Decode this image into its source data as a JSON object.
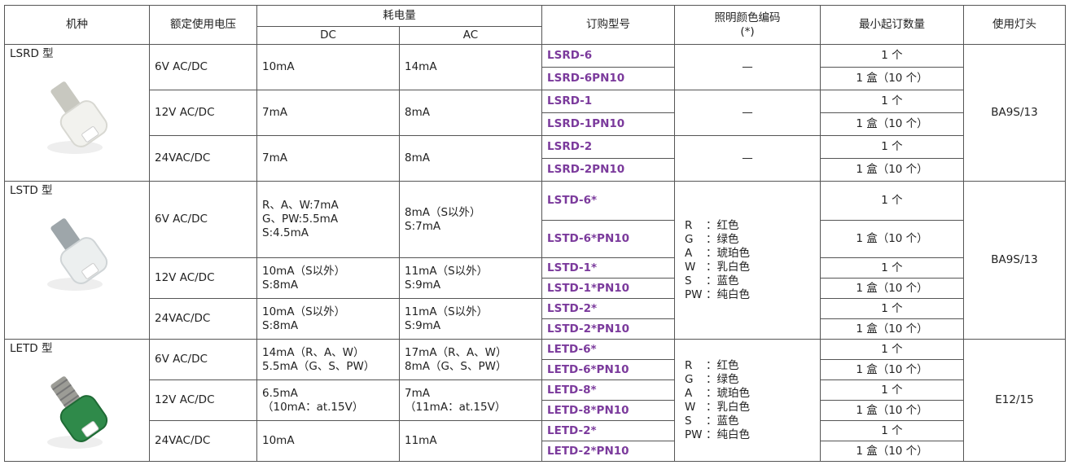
{
  "header": {
    "model": "机种",
    "voltage": "额定使用电压",
    "consumption": "耗电量",
    "dc": "DC",
    "ac": "AC",
    "order": "订购型号",
    "color_code": "照明颜色编码",
    "color_code_note": "(*)",
    "min_qty": "最小起订数量",
    "base": "使用灯头"
  },
  "groups": [
    {
      "model": "LSRD 型",
      "base": "BA9S/13",
      "rows": [
        {
          "voltage": "6V AC/DC",
          "dc": [
            "10mA"
          ],
          "ac": [
            "14mA"
          ],
          "color": "—",
          "orders": [
            {
              "code": "LSRD-6",
              "qty": "1 个"
            },
            {
              "code": "LSRD-6PN10",
              "qty": "1 盒（10 个）"
            }
          ]
        },
        {
          "voltage": "12V AC/DC",
          "dc": [
            "7mA"
          ],
          "ac": [
            "8mA"
          ],
          "color": "—",
          "orders": [
            {
              "code": "LSRD-1",
              "qty": "1 个"
            },
            {
              "code": "LSRD-1PN10",
              "qty": "1 盒（10 个）"
            }
          ]
        },
        {
          "voltage": "24VAC/DC",
          "dc": [
            "7mA"
          ],
          "ac": [
            "8mA"
          ],
          "color": "—",
          "orders": [
            {
              "code": "LSRD-2",
              "qty": "1 个"
            },
            {
              "code": "LSRD-2PN10",
              "qty": "1 盒（10 个）"
            }
          ]
        }
      ]
    },
    {
      "model": "LSTD 型",
      "base": "BA9S/13",
      "color_codes": [
        {
          "code": "R",
          "label": "：红色"
        },
        {
          "code": "G",
          "label": "：绿色"
        },
        {
          "code": "A",
          "label": "：琥珀色"
        },
        {
          "code": "W",
          "label": "：乳白色"
        },
        {
          "code": "S",
          "label": "：蓝色"
        },
        {
          "code": "PW",
          "label": "：纯白色"
        }
      ],
      "rows": [
        {
          "voltage": "6V AC/DC",
          "dc": [
            "R、A、W:7mA",
            "G、PW:5.5mA",
            "S:4.5mA"
          ],
          "ac": [
            "8mA（S以外）",
            "S:7mA"
          ],
          "orders": [
            {
              "code": "LSTD-6*",
              "qty": "1 个"
            },
            {
              "code": "LSTD-6*PN10",
              "qty": "1 盒（10 个）"
            }
          ]
        },
        {
          "voltage": "12V AC/DC",
          "dc": [
            "10mA（S以外）",
            "S:8mA"
          ],
          "ac": [
            "11mA（S以外）",
            "S:9mA"
          ],
          "orders": [
            {
              "code": "LSTD-1*",
              "qty": "1 个"
            },
            {
              "code": "LSTD-1*PN10",
              "qty": "1 盒（10 个）"
            }
          ]
        },
        {
          "voltage": "24VAC/DC",
          "dc": [
            "10mA（S以外）",
            "S:8mA"
          ],
          "ac": [
            "11mA（S以外）",
            "S:9mA"
          ],
          "orders": [
            {
              "code": "LSTD-2*",
              "qty": "1 个"
            },
            {
              "code": "LSTD-2*PN10",
              "qty": "1 盒（10 个）"
            }
          ]
        }
      ]
    },
    {
      "model": "LETD 型",
      "base": "E12/15",
      "color_codes": [
        {
          "code": "R",
          "label": "：红色"
        },
        {
          "code": "G",
          "label": "：绿色"
        },
        {
          "code": "A",
          "label": "：琥珀色"
        },
        {
          "code": "W",
          "label": "：乳白色"
        },
        {
          "code": "S",
          "label": "：蓝色"
        },
        {
          "code": "PW",
          "label": "：纯白色"
        }
      ],
      "rows": [
        {
          "voltage": "6V AC/DC",
          "dc": [
            "14mA（R、A、W）",
            "5.5mA（G、S、PW）"
          ],
          "ac": [
            "17mA（R、A、W）",
            "8mA（G、S、PW）"
          ],
          "orders": [
            {
              "code": "LETD-6*",
              "qty": "1 个"
            },
            {
              "code": "LETD-6*PN10",
              "qty": "1 盒（10 个）"
            }
          ]
        },
        {
          "voltage": "12V AC/DC",
          "dc": [
            "6.5mA",
            "（10mA：at.15V）"
          ],
          "ac": [
            "7mA",
            "（11mA：at.15V）"
          ],
          "orders": [
            {
              "code": "LETD-8*",
              "qty": "1 个"
            },
            {
              "code": "LETD-8*PN10",
              "qty": "1 盒（10 个）"
            }
          ]
        },
        {
          "voltage": "24VAC/DC",
          "dc": [
            "10mA"
          ],
          "ac": [
            "11mA"
          ],
          "orders": [
            {
              "code": "LETD-2*",
              "qty": "1 个"
            },
            {
              "code": "LETD-2*PN10",
              "qty": "1 盒（10 个）"
            }
          ]
        }
      ]
    }
  ]
}
